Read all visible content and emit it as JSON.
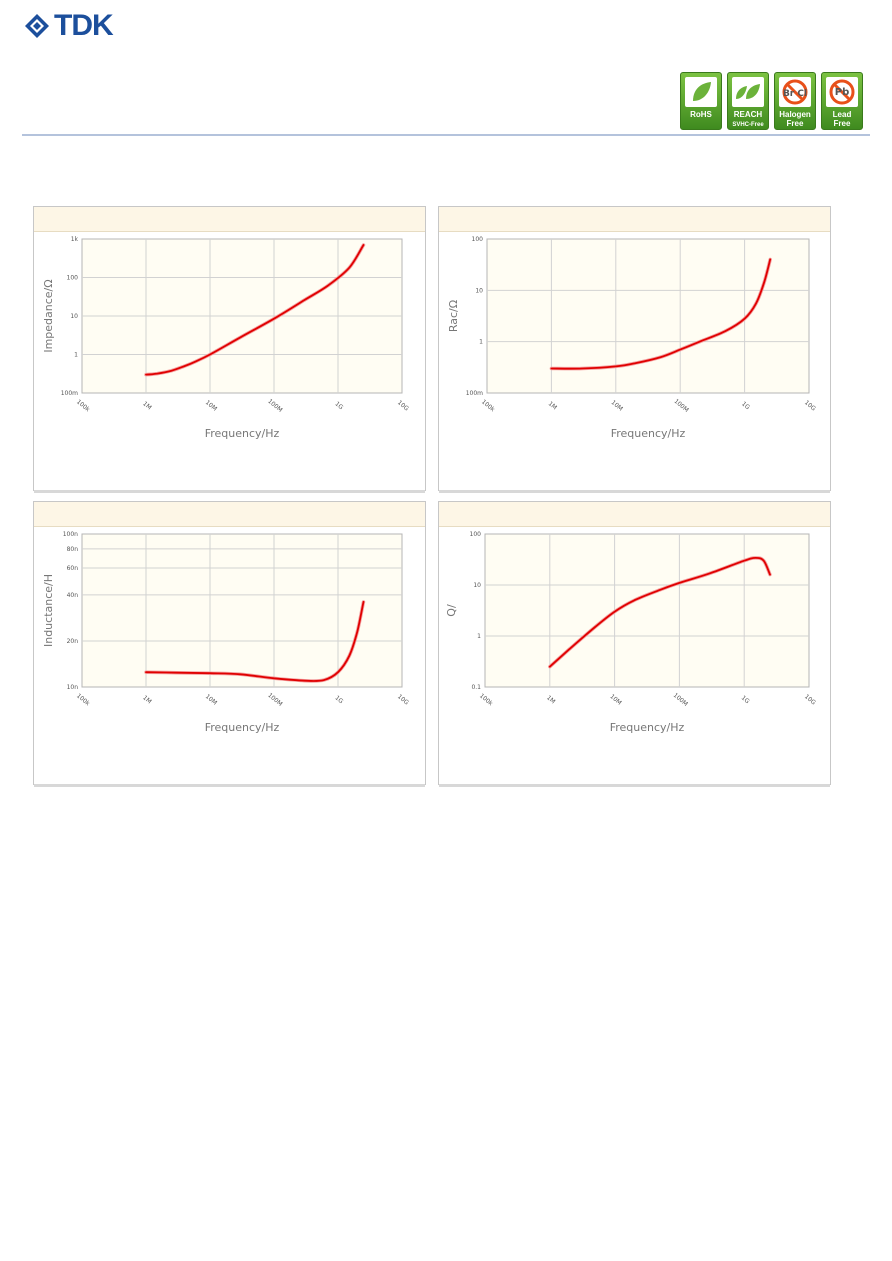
{
  "header": {
    "logo_text": "TDK",
    "badges": [
      {
        "name": "rohs",
        "line1": "RoHS",
        "line2": ""
      },
      {
        "name": "reach",
        "line1": "REACH",
        "line2": "SVHC-Free"
      },
      {
        "name": "halogen",
        "line1": "Halogen",
        "line2": "Free",
        "symbol": "Br Cl"
      },
      {
        "name": "lead",
        "line1": "Lead",
        "line2": "Free",
        "symbol": "Pb"
      }
    ],
    "accent_color": "#1c4f9c",
    "badge_color": "#5aa630"
  },
  "chart_data": [
    {
      "type": "line",
      "title": "",
      "xlabel": "Frequency/Hz",
      "ylabel": "Impedance/Ω",
      "x_scale": "log",
      "y_scale": "log",
      "xlim": [
        100000,
        10000000000
      ],
      "ylim": [
        0.1,
        1000
      ],
      "x_ticks": [
        "100k",
        "1M",
        "10M",
        "100M",
        "1G",
        "10G"
      ],
      "y_ticks": [
        "100m",
        "1",
        "10",
        "100",
        "1k"
      ],
      "grid": true,
      "series_color": "#e00000",
      "x": [
        1000000,
        1500000,
        2500000,
        4000000,
        6000000,
        10000000,
        30000000,
        100000000,
        300000000,
        700000000,
        1500000000,
        2500000000
      ],
      "y": [
        0.3,
        0.32,
        0.38,
        0.5,
        0.66,
        1.0,
        2.8,
        8.5,
        26,
        62,
        180,
        700
      ]
    },
    {
      "type": "line",
      "title": "",
      "xlabel": "Frequency/Hz",
      "ylabel": "Rac/Ω",
      "x_scale": "log",
      "y_scale": "log",
      "xlim": [
        100000,
        10000000000
      ],
      "ylim": [
        0.1,
        100
      ],
      "x_ticks": [
        "100k",
        "1M",
        "10M",
        "100M",
        "1G",
        "10G"
      ],
      "y_ticks": [
        "100m",
        "1",
        "10",
        "100"
      ],
      "grid": true,
      "series_color": "#e00000",
      "x": [
        1000000,
        3000000,
        10000000,
        20000000,
        50000000,
        100000000,
        200000000,
        500000000,
        1000000000,
        1500000000,
        2000000000,
        2500000000
      ],
      "y": [
        0.3,
        0.3,
        0.33,
        0.38,
        0.5,
        0.7,
        1.0,
        1.6,
        2.8,
        5.5,
        14,
        40
      ]
    },
    {
      "type": "line",
      "title": "",
      "xlabel": "Frequency/Hz",
      "ylabel": "Inductance/H",
      "x_scale": "log",
      "y_scale": "log",
      "xlim": [
        100000,
        10000000000
      ],
      "ylim": [
        1e-08,
        1e-07
      ],
      "x_ticks": [
        "100k",
        "1M",
        "10M",
        "100M",
        "1G",
        "10G"
      ],
      "y_ticks": [
        {
          "label": "10n",
          "value": 1e-08
        },
        {
          "label": "20n",
          "value": 2e-08
        },
        {
          "label": "40n",
          "value": 4e-08
        },
        {
          "label": "60n",
          "value": 6e-08
        },
        {
          "label": "80n",
          "value": 8e-08
        },
        {
          "label": "100n",
          "value": 1e-07
        }
      ],
      "grid": true,
      "series_color": "#e00000",
      "x": [
        1000000,
        3000000,
        10000000,
        30000000,
        100000000,
        300000000,
        600000000,
        1000000000,
        1500000000,
        2000000000,
        2500000000
      ],
      "y": [
        1.25e-08,
        1.24e-08,
        1.23e-08,
        1.21e-08,
        1.14e-08,
        1.1e-08,
        1.11e-08,
        1.25e-08,
        1.6e-08,
        2.3e-08,
        3.6e-08
      ]
    },
    {
      "type": "line",
      "title": "",
      "xlabel": "Frequency/Hz",
      "ylabel": "Q/",
      "x_scale": "log",
      "y_scale": "log",
      "xlim": [
        100000,
        10000000000
      ],
      "ylim": [
        0.1,
        100
      ],
      "x_ticks": [
        "100k",
        "1M",
        "10M",
        "100M",
        "1G",
        "10G"
      ],
      "y_ticks": [
        "0.1",
        "1",
        "10",
        "100"
      ],
      "grid": true,
      "series_color": "#e00000",
      "x": [
        1000000,
        2000000,
        5000000,
        10000000,
        20000000,
        50000000,
        100000000,
        300000000,
        1000000000,
        1500000000,
        2000000000,
        2500000000
      ],
      "y": [
        0.25,
        0.55,
        1.5,
        3.0,
        5.0,
        8.0,
        11,
        17,
        30,
        34,
        30,
        16
      ]
    }
  ]
}
